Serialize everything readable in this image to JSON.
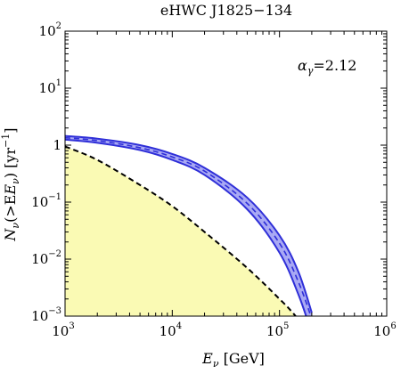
{
  "chart_data": {
    "type": "line",
    "title": "eHWC J1825−134",
    "xlabel": {
      "main": "E",
      "sub": "ν",
      "unit": " [GeV]"
    },
    "ylabel": {
      "main": "N",
      "sub": "ν",
      "rest_open": "(>E",
      "rest_close": ")",
      "unit_open": " [yr",
      "unit_exp": "−1",
      "unit_close": "]"
    },
    "annotation": {
      "symbol": "α",
      "sub": "γ",
      "value": "=2.12"
    },
    "x_scale": "log",
    "y_scale": "log",
    "xlim": [
      1000,
      1000000
    ],
    "ylim": [
      0.001,
      100
    ],
    "x_ticks": [
      {
        "value": 1000,
        "base": "10",
        "exp": "3"
      },
      {
        "value": 10000,
        "base": "10",
        "exp": "4"
      },
      {
        "value": 100000,
        "base": "10",
        "exp": "5"
      },
      {
        "value": 1000000,
        "base": "10",
        "exp": "6"
      }
    ],
    "y_ticks": [
      {
        "value": 0.001,
        "base": "10",
        "exp": "−3"
      },
      {
        "value": 0.01,
        "base": "10",
        "exp": "−2"
      },
      {
        "value": 0.1,
        "base": "10",
        "exp": "−1"
      },
      {
        "value": 1,
        "base": "1",
        "exp": ""
      },
      {
        "value": 10,
        "base": "10",
        "exp": "1"
      },
      {
        "value": 100,
        "base": "10",
        "exp": "2"
      }
    ],
    "grid": false,
    "series": [
      {
        "style": "band",
        "color": "#2f2fd8",
        "fill": "#9a9af2",
        "x": [
          1000,
          2000,
          5000,
          10000,
          20000,
          50000,
          100000,
          150000,
          200000
        ],
        "upper": [
          1.45,
          1.3,
          1.0,
          0.7,
          0.4,
          0.12,
          0.026,
          0.006,
          0.00115
        ],
        "lower": [
          1.25,
          1.1,
          0.82,
          0.55,
          0.3,
          0.075,
          0.013,
          0.0024,
          0.0005
        ],
        "mid": [
          1.35,
          1.2,
          0.9,
          0.62,
          0.35,
          0.095,
          0.019,
          0.004,
          0.0009
        ]
      },
      {
        "style": "dashed-filled",
        "color": "#000000",
        "fill": "#fafab4",
        "x": [
          1000,
          2000,
          5000,
          10000,
          20000,
          50000,
          100000,
          130000,
          160000
        ],
        "y": [
          0.95,
          0.55,
          0.2,
          0.085,
          0.03,
          0.007,
          0.002,
          0.0012,
          0.00075
        ]
      }
    ]
  }
}
